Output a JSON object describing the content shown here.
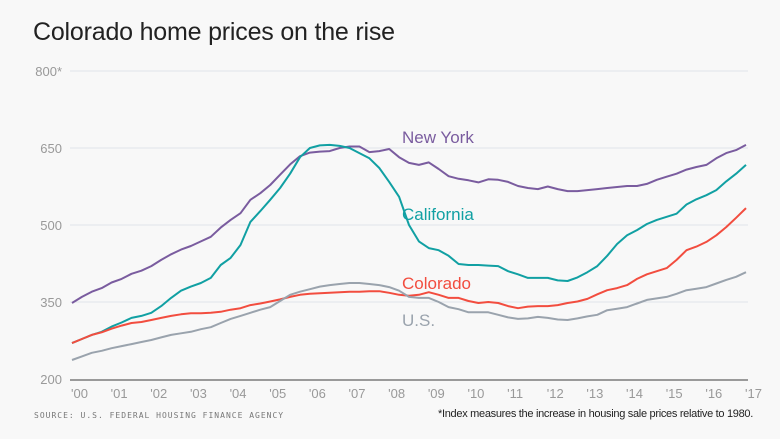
{
  "chart_data": {
    "type": "line",
    "title": "Colorado home prices on the rise",
    "source": "SOURCE: U.S. FEDERAL HOUSING FINANCE AGENCY",
    "note": "*Index measures the increase in housing sale prices relative to 1980.",
    "x_start": 2000,
    "x_step": 0.25,
    "xlim": [
      2000,
      2017
    ],
    "ylim": [
      200,
      800
    ],
    "y_ticks": [
      200,
      350,
      500,
      650,
      800
    ],
    "y_tick_labels": [
      "200",
      "350",
      "500",
      "650",
      "800*"
    ],
    "x_ticks": [
      2000,
      2001,
      2002,
      2003,
      2004,
      2005,
      2006,
      2007,
      2008,
      2009,
      2010,
      2011,
      2012,
      2013,
      2014,
      2015,
      2016,
      2017
    ],
    "x_tick_labels": [
      "'00",
      "'01",
      "'02",
      "'03",
      "'04",
      "'05",
      "'06",
      "'07",
      "'08",
      "'09",
      "'10",
      "'11",
      "'12",
      "'13",
      "'14",
      "'15",
      "'16",
      "'17"
    ],
    "grid": true,
    "legend": "inline labels",
    "series": [
      {
        "name": "New York",
        "color": "#7a5c9f",
        "values": [
          348,
          360,
          370,
          377,
          388,
          395,
          405,
          411,
          420,
          432,
          443,
          452,
          459,
          468,
          477,
          495,
          510,
          523,
          549,
          562,
          578,
          598,
          618,
          634,
          641,
          643,
          644,
          650,
          653,
          653,
          642,
          644,
          648,
          632,
          621,
          617,
          622,
          609,
          595,
          590,
          587,
          583,
          589,
          588,
          584,
          576,
          572,
          570,
          575,
          570,
          566,
          566,
          568,
          570,
          572,
          574,
          576,
          576,
          580,
          588,
          594,
          600,
          608,
          613,
          617,
          630,
          640,
          646,
          656
        ]
      },
      {
        "name": "California",
        "color": "#11a0a3",
        "values": [
          270,
          278,
          286,
          292,
          302,
          310,
          319,
          323,
          329,
          342,
          358,
          372,
          380,
          387,
          397,
          422,
          436,
          461,
          506,
          527,
          549,
          572,
          600,
          632,
          650,
          655,
          656,
          654,
          650,
          640,
          630,
          611,
          584,
          555,
          500,
          468,
          455,
          451,
          440,
          424,
          422,
          422,
          421,
          420,
          410,
          404,
          397,
          397,
          397,
          392,
          391,
          398,
          408,
          420,
          440,
          463,
          480,
          490,
          502,
          510,
          516,
          522,
          540,
          550,
          558,
          568,
          585,
          600,
          617
        ]
      },
      {
        "name": "Colorado",
        "color": "#f24d3f",
        "values": [
          270,
          278,
          286,
          291,
          298,
          304,
          309,
          311,
          315,
          319,
          323,
          326,
          328,
          328,
          329,
          331,
          335,
          338,
          344,
          347,
          351,
          355,
          360,
          364,
          366,
          367,
          368,
          369,
          370,
          370,
          371,
          371,
          368,
          364,
          362,
          364,
          369,
          364,
          358,
          358,
          352,
          348,
          350,
          348,
          342,
          338,
          341,
          342,
          342,
          344,
          348,
          351,
          356,
          365,
          373,
          377,
          383,
          395,
          404,
          410,
          416,
          432,
          451,
          458,
          467,
          480,
          496,
          514,
          533
        ]
      },
      {
        "name": "U.S.",
        "color": "#9aa3ad",
        "values": [
          237,
          244,
          251,
          255,
          260,
          264,
          268,
          272,
          276,
          281,
          286,
          289,
          292,
          297,
          301,
          309,
          317,
          323,
          329,
          335,
          340,
          352,
          364,
          370,
          375,
          380,
          383,
          385,
          387,
          387,
          385,
          383,
          379,
          372,
          360,
          358,
          358,
          350,
          340,
          336,
          330,
          330,
          330,
          325,
          320,
          317,
          318,
          321,
          319,
          316,
          315,
          318,
          322,
          325,
          334,
          337,
          340,
          347,
          354,
          357,
          360,
          366,
          373,
          376,
          379,
          386,
          393,
          399,
          408
        ]
      }
    ]
  }
}
